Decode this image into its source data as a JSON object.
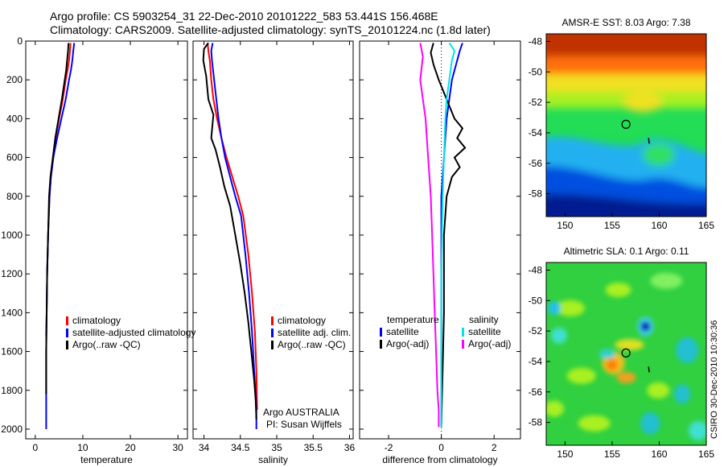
{
  "header": {
    "line1": "Argo profile: CS 5903254_31 22-Dec-2010 20101222_583 53.441S 156.468E",
    "line2": "Climatology: CARS2009. Satellite-adjusted climatology: synTS_20101224.nc (1.8d later)"
  },
  "colors": {
    "red": "#ff0000",
    "blue": "#0000ff",
    "black": "#000000",
    "cyan": "#00e5e5",
    "magenta": "#ff00ff"
  },
  "chart_data": [
    {
      "id": "temperature",
      "type": "line",
      "xlabel": "temperature",
      "xlim": [
        -2,
        32
      ],
      "xticks": [
        "0",
        "10",
        "20",
        "30"
      ],
      "xtick_values": [
        0,
        10,
        20,
        30
      ],
      "ylim": [
        2050,
        0
      ],
      "yticks": [
        "0",
        "200",
        "400",
        "600",
        "800",
        "1000",
        "1200",
        "1400",
        "1600",
        "1800",
        "2000"
      ],
      "ytick_values": [
        0,
        200,
        400,
        600,
        800,
        1000,
        1200,
        1400,
        1600,
        1800,
        2000
      ],
      "legend": [
        "climatology",
        "satellite-adjusted climatology",
        "Argo(..raw -QC)"
      ],
      "series": [
        {
          "name": "climatology",
          "color": "red",
          "x": [
            7.4,
            7.3,
            7.1,
            6.8,
            6.4,
            5.8,
            5.0,
            4.3,
            3.8,
            3.3,
            3.0,
            2.7,
            2.5,
            2.4,
            2.3,
            2.3
          ],
          "y": [
            10,
            50,
            100,
            150,
            200,
            300,
            400,
            500,
            600,
            700,
            800,
            1000,
            1200,
            1400,
            1500,
            1520
          ]
        },
        {
          "name": "satellite-adjusted climatology",
          "color": "blue",
          "x": [
            8.2,
            8.0,
            7.8,
            7.5,
            7.1,
            6.4,
            5.5,
            4.6,
            3.8,
            3.3,
            3.0,
            2.7,
            2.5,
            2.4,
            2.3,
            2.3
          ],
          "y": [
            10,
            50,
            100,
            150,
            200,
            300,
            400,
            500,
            600,
            700,
            800,
            1000,
            1200,
            1400,
            1600,
            2000
          ]
        },
        {
          "name": "Argo(..raw -QC)",
          "color": "black",
          "x": [
            7.0,
            6.9,
            6.7,
            6.5,
            6.2,
            5.6,
            4.9,
            4.2,
            3.7,
            3.2,
            2.9,
            2.7,
            2.5,
            2.4,
            2.3,
            2.3
          ],
          "y": [
            10,
            50,
            100,
            150,
            200,
            300,
            400,
            500,
            600,
            700,
            800,
            1000,
            1200,
            1400,
            1600,
            1820
          ]
        }
      ]
    },
    {
      "id": "salinity",
      "type": "line",
      "xlabel": "salinity",
      "xlim": [
        33.85,
        36.05
      ],
      "xticks": [
        "34",
        "34.5",
        "35",
        "35.5",
        "36"
      ],
      "xtick_values": [
        34,
        34.5,
        35,
        35.5,
        36
      ],
      "ylim": [
        2050,
        0
      ],
      "legend": [
        "climatology",
        "satellite adj. clim.",
        "Argo(..raw -QC)"
      ],
      "annotations": [
        "Argo AUSTRALIA",
        "PI: Susan Wijffels"
      ],
      "series": [
        {
          "name": "climatology",
          "color": "red",
          "x": [
            34.05,
            34.06,
            34.08,
            34.1,
            34.13,
            34.18,
            34.24,
            34.31,
            34.39,
            34.47,
            34.54,
            34.61,
            34.66,
            34.7,
            34.72,
            34.73
          ],
          "y": [
            10,
            50,
            100,
            200,
            300,
            400,
            500,
            600,
            700,
            800,
            900,
            1100,
            1300,
            1500,
            1700,
            1900
          ]
        },
        {
          "name": "satellite adj. clim.",
          "color": "blue",
          "x": [
            34.12,
            34.1,
            34.11,
            34.14,
            34.17,
            34.2,
            34.24,
            34.29,
            34.36,
            34.43,
            34.51,
            34.57,
            34.62,
            34.66,
            34.69,
            34.72,
            34.72
          ],
          "y": [
            10,
            50,
            100,
            200,
            300,
            400,
            500,
            600,
            700,
            800,
            900,
            1100,
            1300,
            1500,
            1700,
            1900,
            2000
          ]
        },
        {
          "name": "Argo(..raw -QC)",
          "color": "black",
          "x": [
            34.06,
            34.0,
            33.99,
            34.03,
            34.06,
            34.13,
            34.1,
            34.16,
            34.22,
            34.28,
            34.36,
            34.43,
            34.5,
            34.56,
            34.61,
            34.65,
            34.69,
            34.71,
            34.72
          ],
          "y": [
            10,
            40,
            100,
            180,
            300,
            380,
            500,
            560,
            650,
            750,
            850,
            1000,
            1150,
            1300,
            1450,
            1600,
            1750,
            1850,
            1950
          ]
        }
      ]
    },
    {
      "id": "difference",
      "type": "line",
      "xlabel": "difference from climatology",
      "xlim": [
        -3.1,
        3.0
      ],
      "xticks": [
        "-2",
        "0",
        "2"
      ],
      "xtick_values": [
        -2,
        0,
        2
      ],
      "ylim": [
        2050,
        0
      ],
      "legend_groups": [
        {
          "header": "temperature",
          "items": [
            "satellite",
            "Argo(-adj)"
          ]
        },
        {
          "header": "salinity",
          "items": [
            "satellite",
            "Argo(-adj)"
          ]
        }
      ],
      "series": [
        {
          "name": "temperature satellite",
          "color": "blue",
          "x": [
            0.8,
            0.7,
            0.6,
            0.4,
            0.3,
            0.2,
            0.1,
            0.0,
            0.0,
            0.0,
            0.0
          ],
          "y": [
            10,
            50,
            100,
            200,
            300,
            400,
            600,
            800,
            1200,
            1600,
            1990
          ]
        },
        {
          "name": "temperature Argo(-adj)",
          "color": "black",
          "x": [
            -0.3,
            -0.4,
            -0.3,
            -0.1,
            0.2,
            0.5,
            0.8,
            0.6,
            0.9,
            0.5,
            0.7,
            0.4,
            0.2,
            0.1,
            0.1,
            0.0
          ],
          "y": [
            10,
            60,
            120,
            200,
            300,
            400,
            450,
            500,
            550,
            600,
            650,
            700,
            800,
            1000,
            1400,
            1990
          ]
        },
        {
          "name": "salinity satellite",
          "color": "cyan",
          "x": [
            0.3,
            0.5,
            0.4,
            0.3,
            0.2,
            0.15,
            0.1,
            0.05,
            0.0,
            0.0,
            0.0
          ],
          "y": [
            10,
            50,
            100,
            200,
            300,
            400,
            600,
            800,
            1200,
            1600,
            1990
          ]
        },
        {
          "name": "salinity Argo(-adj)",
          "color": "magenta",
          "x": [
            -0.8,
            -0.7,
            -0.8,
            -0.6,
            -0.5,
            -0.4,
            -0.35,
            -0.3,
            -0.25,
            -0.2,
            -0.15,
            -0.1,
            -0.1
          ],
          "y": [
            10,
            80,
            200,
            400,
            600,
            800,
            1000,
            1200,
            1400,
            1600,
            1800,
            1900,
            1990
          ]
        }
      ]
    },
    {
      "id": "amsre-sst-map",
      "type": "heatmap",
      "title": "AMSR-E SST: 8.03 Argo: 7.38",
      "xlim": [
        148,
        165
      ],
      "ylim": [
        -59.5,
        -47.5
      ],
      "xticks": [
        "150",
        "155",
        "160",
        "165"
      ],
      "xtick_values": [
        150,
        155,
        160,
        165
      ],
      "yticks": [
        "-48",
        "-50",
        "-52",
        "-54",
        "-56",
        "-58"
      ],
      "ytick_values": [
        -48,
        -50,
        -52,
        -54,
        -56,
        -58
      ],
      "marker": {
        "lon": 156.47,
        "lat": -53.44
      }
    },
    {
      "id": "altimetric-sla-map",
      "type": "heatmap",
      "title": "Altimetric SLA: 0.1 Argo: 0.11",
      "xlim": [
        148,
        165
      ],
      "ylim": [
        -59.5,
        -47.5
      ],
      "xticks": [
        "150",
        "155",
        "160",
        "165"
      ],
      "xtick_values": [
        150,
        155,
        160,
        165
      ],
      "yticks": [
        "-48",
        "-50",
        "-52",
        "-54",
        "-56",
        "-58"
      ],
      "ytick_values": [
        -48,
        -50,
        -52,
        -54,
        -56,
        -58
      ],
      "marker": {
        "lon": 156.47,
        "lat": -53.44
      }
    }
  ],
  "credit": "CSIRO 30-Dec-2010 10:30:36"
}
